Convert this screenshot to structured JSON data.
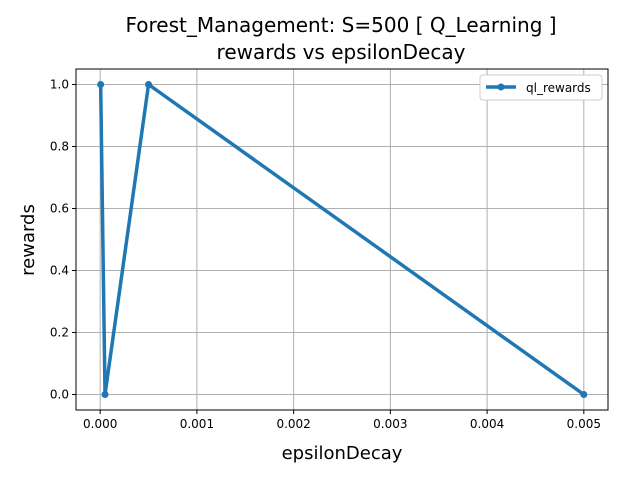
{
  "chart_data": {
    "type": "line",
    "title_line1": "Forest_Management: S=500 [ Q_Learning ]",
    "title_line2": "rewards vs epsilonDecay",
    "xlabel": "epsilonDecay",
    "ylabel": "rewards",
    "xlim": [
      -0.00025,
      0.00525
    ],
    "ylim": [
      -0.05,
      1.05
    ],
    "xticks": [
      0.0,
      0.001,
      0.002,
      0.003,
      0.004,
      0.005
    ],
    "xtick_labels": [
      "0.000",
      "0.001",
      "0.002",
      "0.003",
      "0.004",
      "0.005"
    ],
    "yticks": [
      0.0,
      0.2,
      0.4,
      0.6,
      0.8,
      1.0
    ],
    "ytick_labels": [
      "0.0",
      "0.2",
      "0.4",
      "0.6",
      "0.8",
      "1.0"
    ],
    "grid": true,
    "legend_position": "top-right",
    "series": [
      {
        "name": "ql_rewards",
        "color": "#1f77b4",
        "x": [
          5e-06,
          5e-05,
          0.0005,
          0.005
        ],
        "y": [
          1.0,
          0.0,
          1.0,
          0.0
        ]
      }
    ]
  }
}
